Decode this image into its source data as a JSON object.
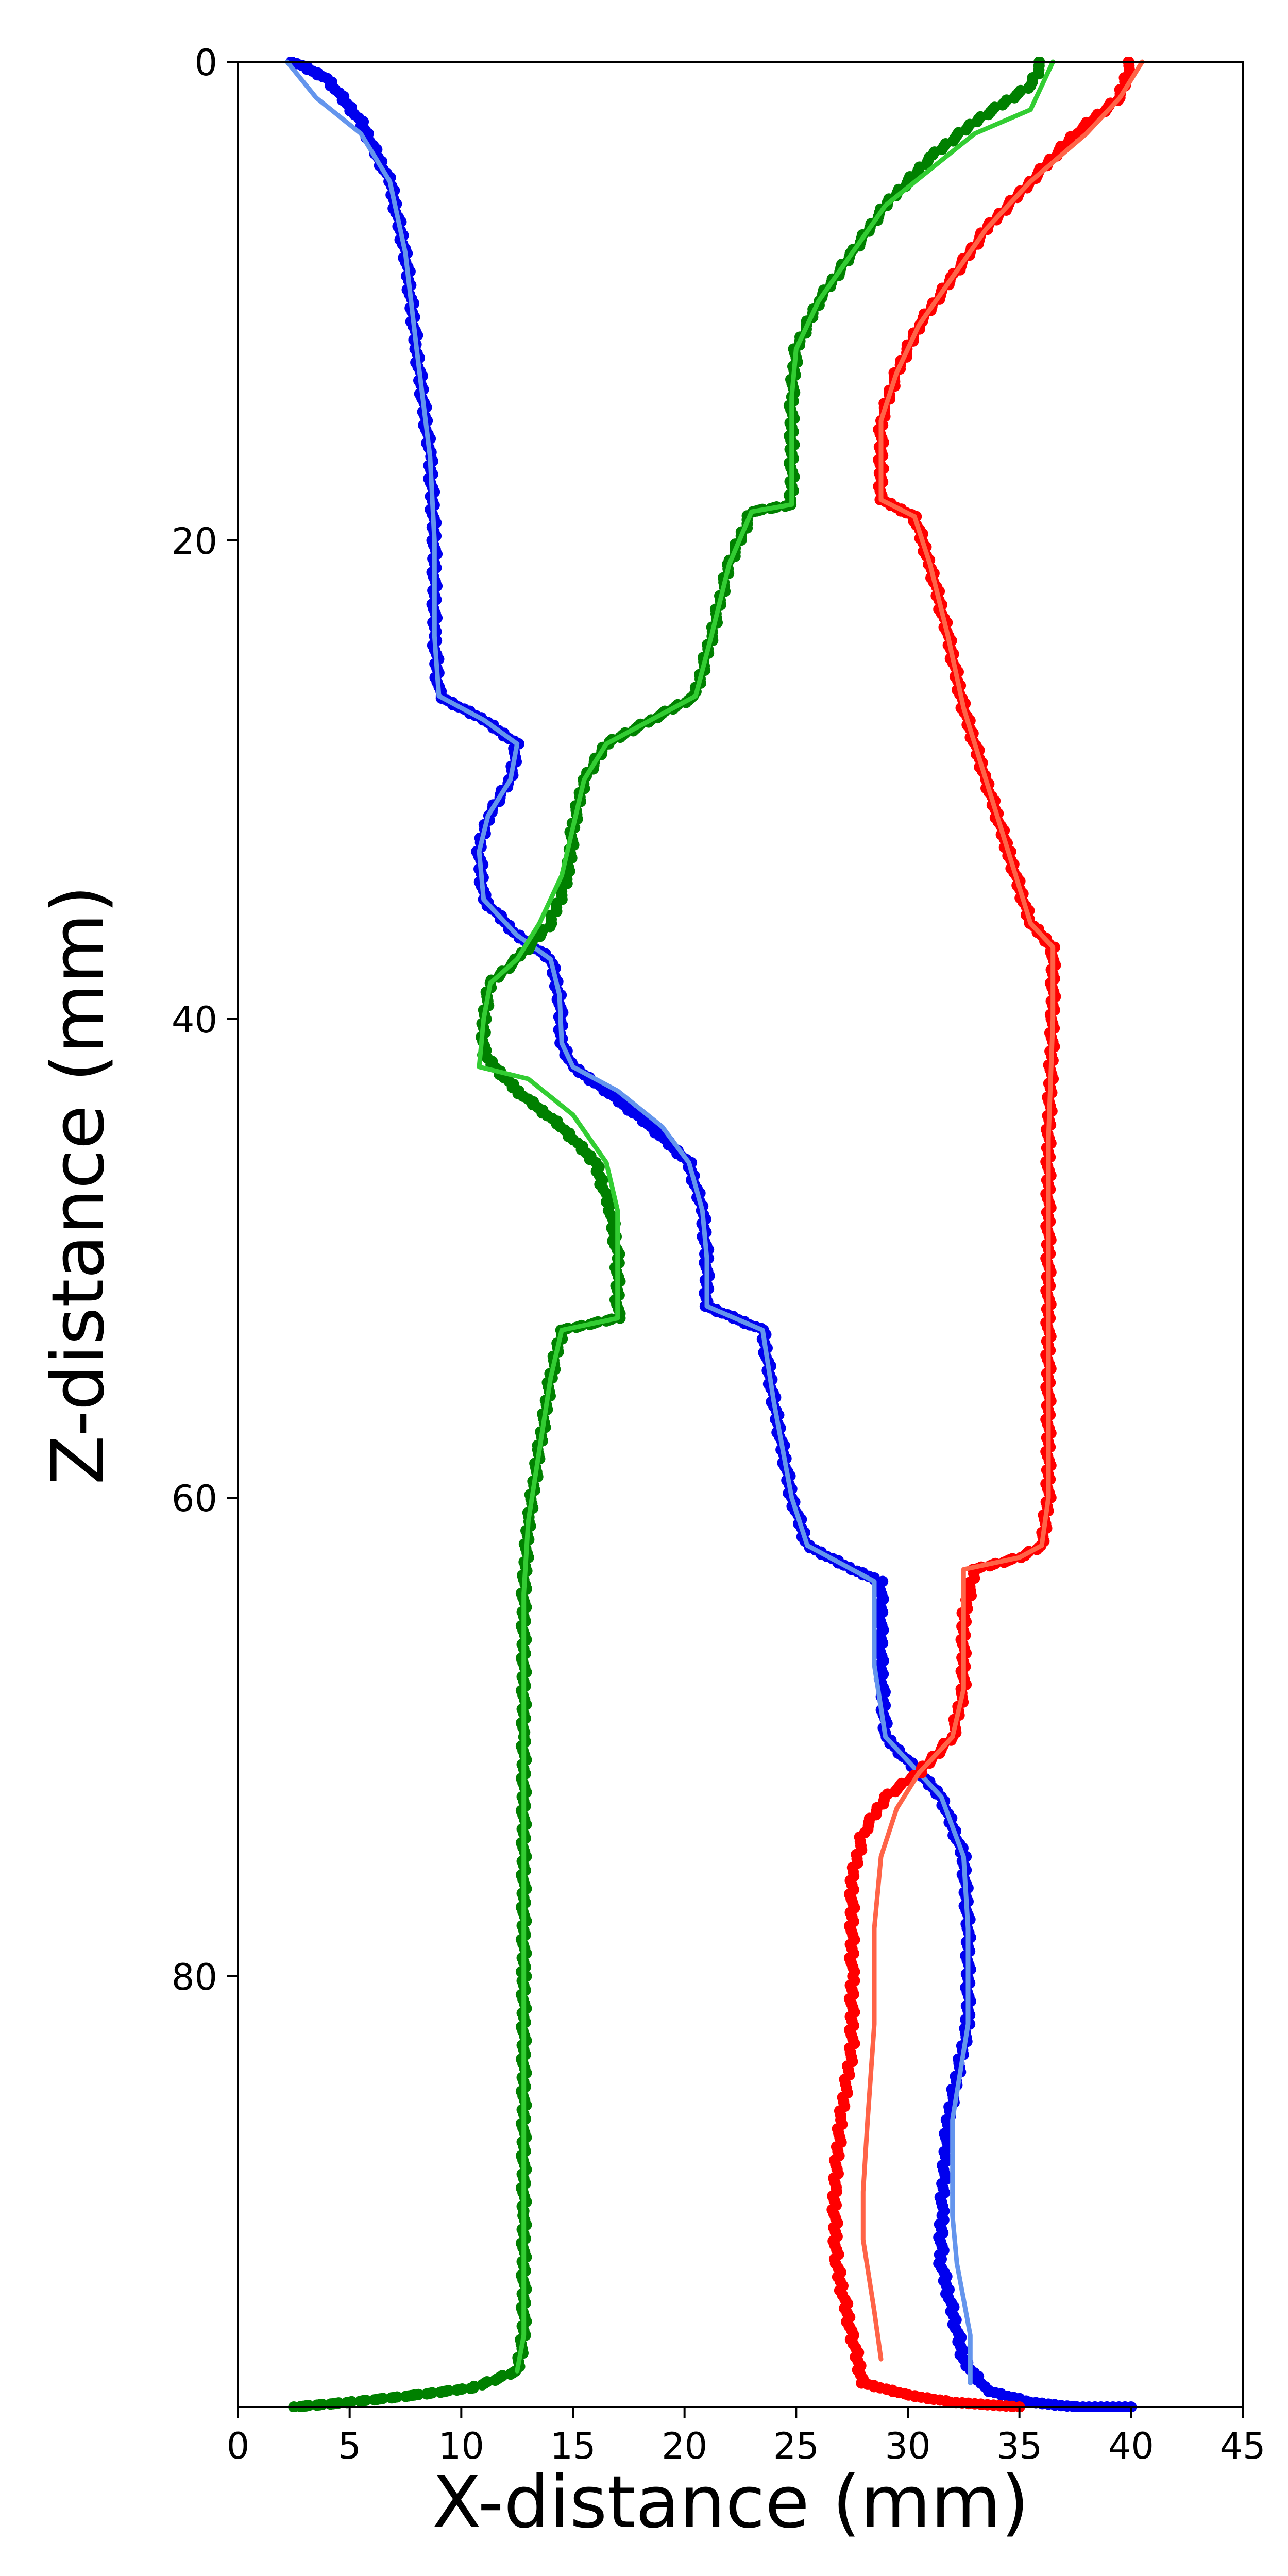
{
  "chart_data": {
    "type": "scatter",
    "title": "",
    "xlabel": "X-distance (mm)",
    "ylabel": "Z-distance (mm)",
    "xlim": [
      0,
      45
    ],
    "ylim": [
      0,
      98
    ],
    "y_inverted": true,
    "grid": false,
    "legend": "none",
    "x_ticks": [
      "0",
      "5",
      "10",
      "15",
      "20",
      "25",
      "30",
      "35",
      "40",
      "45"
    ],
    "y_ticks": [
      "0",
      "20",
      "40",
      "60",
      "80"
    ],
    "series": [
      {
        "color": "#0000ee",
        "fit_color": "#6495ed",
        "points": [
          [
            2.5,
            0
          ],
          [
            4,
            0.7
          ],
          [
            5.5,
            2.5
          ],
          [
            6.8,
            5
          ],
          [
            7.5,
            8
          ],
          [
            8,
            12
          ],
          [
            8.6,
            16.5
          ],
          [
            8.8,
            20
          ],
          [
            8.8,
            24
          ],
          [
            9,
            26.5
          ],
          [
            11,
            27.5
          ],
          [
            12.5,
            28.5
          ],
          [
            12.2,
            30
          ],
          [
            11.2,
            31.5
          ],
          [
            10.8,
            33
          ],
          [
            11,
            35
          ],
          [
            12.5,
            36.5
          ],
          [
            14,
            37.5
          ],
          [
            14.4,
            39
          ],
          [
            14.5,
            41
          ],
          [
            15,
            42
          ],
          [
            16.5,
            43
          ],
          [
            18.5,
            44.5
          ],
          [
            20.2,
            46
          ],
          [
            20.8,
            48
          ],
          [
            21,
            50
          ],
          [
            21,
            52
          ],
          [
            23.5,
            53
          ],
          [
            24,
            56
          ],
          [
            24.8,
            60
          ],
          [
            25.5,
            62
          ],
          [
            27.5,
            63
          ],
          [
            28.8,
            63.5
          ],
          [
            28.8,
            67
          ],
          [
            29,
            70
          ],
          [
            30.5,
            71.5
          ],
          [
            31.5,
            72.5
          ],
          [
            32.5,
            75
          ],
          [
            32.7,
            78
          ],
          [
            32.7,
            82
          ],
          [
            31.8,
            86
          ],
          [
            31.5,
            90
          ],
          [
            31.5,
            92
          ],
          [
            32.5,
            96
          ],
          [
            33.5,
            97.3
          ],
          [
            35.5,
            97.8
          ],
          [
            37.5,
            98
          ],
          [
            40,
            98
          ]
        ],
        "fit": [
          [
            2.2,
            0
          ],
          [
            3.5,
            1.5
          ],
          [
            5.5,
            3
          ],
          [
            6.8,
            5
          ],
          [
            7.5,
            8
          ],
          [
            8,
            12
          ],
          [
            8.6,
            16.5
          ],
          [
            8.8,
            20
          ],
          [
            8.8,
            24
          ],
          [
            9,
            26.5
          ],
          [
            11,
            27.5
          ],
          [
            12.5,
            28.5
          ],
          [
            12.2,
            30
          ],
          [
            11.2,
            31.5
          ],
          [
            10.8,
            33
          ],
          [
            11,
            35
          ],
          [
            12.5,
            36.5
          ],
          [
            14,
            37.5
          ],
          [
            14.4,
            39
          ],
          [
            14.5,
            41
          ],
          [
            15,
            42
          ],
          [
            17,
            43
          ],
          [
            19,
            44.5
          ],
          [
            20.2,
            46
          ],
          [
            20.8,
            48
          ],
          [
            21,
            50
          ],
          [
            21,
            52
          ],
          [
            23.5,
            53
          ],
          [
            24,
            56
          ],
          [
            24.8,
            60
          ],
          [
            25.5,
            62
          ],
          [
            27.5,
            63
          ],
          [
            28.5,
            63.5
          ],
          [
            28.5,
            67
          ],
          [
            29,
            70
          ],
          [
            30.5,
            71.5
          ],
          [
            31.5,
            72.5
          ],
          [
            32.5,
            75
          ],
          [
            32.7,
            78
          ],
          [
            32.7,
            82
          ],
          [
            32,
            86
          ],
          [
            32,
            90
          ],
          [
            32.2,
            92
          ],
          [
            32.8,
            95
          ],
          [
            32.8,
            97
          ]
        ]
      },
      {
        "color": "#008000",
        "fit_color": "#32cd32",
        "points": [
          [
            36,
            0
          ],
          [
            35.5,
            1
          ],
          [
            33,
            2.5
          ],
          [
            31,
            4
          ],
          [
            29,
            6
          ],
          [
            27.5,
            8
          ],
          [
            26,
            10
          ],
          [
            25,
            12
          ],
          [
            24.8,
            14
          ],
          [
            24.8,
            16
          ],
          [
            24.8,
            18.5
          ],
          [
            23,
            18.8
          ],
          [
            22,
            21
          ],
          [
            21.2,
            24
          ],
          [
            20.5,
            26.5
          ],
          [
            18.5,
            27.5
          ],
          [
            16.5,
            28.5
          ],
          [
            15.5,
            30
          ],
          [
            15,
            32
          ],
          [
            14.8,
            34
          ],
          [
            14,
            36
          ],
          [
            12.5,
            37.5
          ],
          [
            11.3,
            38.5
          ],
          [
            11,
            40
          ],
          [
            11,
            41.5
          ],
          [
            12.5,
            43
          ],
          [
            14.5,
            44.5
          ],
          [
            16,
            46
          ],
          [
            16.7,
            48
          ],
          [
            17,
            50
          ],
          [
            17,
            52.5
          ],
          [
            14.5,
            53
          ],
          [
            14,
            55
          ],
          [
            13.5,
            58
          ],
          [
            13,
            61
          ],
          [
            12.8,
            64
          ],
          [
            12.8,
            70
          ],
          [
            12.8,
            80
          ],
          [
            12.8,
            90
          ],
          [
            12.8,
            95
          ],
          [
            12.5,
            96.5
          ],
          [
            10.5,
            97.2
          ],
          [
            8,
            97.5
          ],
          [
            5,
            97.8
          ],
          [
            2.5,
            98
          ]
        ],
        "fit": [
          [
            36.5,
            0
          ],
          [
            35.5,
            2
          ],
          [
            33,
            3
          ],
          [
            31,
            4.5
          ],
          [
            29,
            6
          ],
          [
            27.5,
            8
          ],
          [
            26,
            10
          ],
          [
            25,
            12
          ],
          [
            24.8,
            14
          ],
          [
            24.8,
            16
          ],
          [
            24.8,
            18.5
          ],
          [
            23,
            18.8
          ],
          [
            22,
            21
          ],
          [
            21.2,
            24
          ],
          [
            20.5,
            26.5
          ],
          [
            18.5,
            27.5
          ],
          [
            16.5,
            28.5
          ],
          [
            15.5,
            30
          ],
          [
            15,
            32
          ],
          [
            14.5,
            34
          ],
          [
            13.5,
            36
          ],
          [
            12.5,
            37.5
          ],
          [
            11.3,
            38.5
          ],
          [
            11,
            40
          ],
          [
            10.8,
            42
          ],
          [
            13,
            42.5
          ],
          [
            15,
            44
          ],
          [
            16.5,
            46
          ],
          [
            17,
            48
          ],
          [
            17,
            52.5
          ],
          [
            14.5,
            53
          ],
          [
            14,
            55
          ],
          [
            13.5,
            58
          ],
          [
            13,
            61
          ],
          [
            12.8,
            64
          ],
          [
            12.8,
            70
          ],
          [
            12.8,
            80
          ],
          [
            12.8,
            90
          ],
          [
            12.8,
            95
          ],
          [
            12.5,
            96.5
          ]
        ]
      },
      {
        "color": "#ff0000",
        "fit_color": "#ff6347",
        "points": [
          [
            40,
            0
          ],
          [
            39.5,
            1.5
          ],
          [
            37.5,
            3
          ],
          [
            35.5,
            5
          ],
          [
            33.5,
            7
          ],
          [
            32,
            9
          ],
          [
            30.5,
            11
          ],
          [
            29.5,
            13
          ],
          [
            28.8,
            15
          ],
          [
            28.8,
            17
          ],
          [
            28.8,
            18.3
          ],
          [
            30.3,
            19
          ],
          [
            31,
            21
          ],
          [
            31.8,
            24
          ],
          [
            32.5,
            27
          ],
          [
            33.5,
            30
          ],
          [
            34.5,
            33
          ],
          [
            35.5,
            36
          ],
          [
            36.5,
            37
          ],
          [
            36.5,
            40
          ],
          [
            36.3,
            45
          ],
          [
            36.3,
            50
          ],
          [
            36.3,
            55
          ],
          [
            36.3,
            60
          ],
          [
            36,
            62
          ],
          [
            35,
            62.5
          ],
          [
            33,
            63
          ],
          [
            32.5,
            65
          ],
          [
            32.5,
            68
          ],
          [
            32,
            70
          ],
          [
            30.5,
            71.5
          ],
          [
            29,
            72.5
          ],
          [
            28,
            74
          ],
          [
            27.5,
            76
          ],
          [
            27.5,
            80
          ],
          [
            27.5,
            83
          ],
          [
            27,
            86
          ],
          [
            26.7,
            89
          ],
          [
            26.8,
            92
          ],
          [
            27.5,
            95
          ],
          [
            28,
            97
          ],
          [
            30,
            97.5
          ],
          [
            32,
            97.8
          ],
          [
            35,
            98
          ]
        ],
        "fit": [
          [
            40.5,
            0
          ],
          [
            39.5,
            1.5
          ],
          [
            38,
            3
          ],
          [
            35.5,
            5
          ],
          [
            33.5,
            7
          ],
          [
            32,
            9
          ],
          [
            30.5,
            11
          ],
          [
            29.5,
            13
          ],
          [
            28.8,
            15
          ],
          [
            28.8,
            17
          ],
          [
            28.8,
            18.3
          ],
          [
            30.3,
            19
          ],
          [
            31,
            21
          ],
          [
            31.8,
            24
          ],
          [
            32.5,
            27
          ],
          [
            33.5,
            30
          ],
          [
            34.5,
            33
          ],
          [
            35.5,
            36
          ],
          [
            36.5,
            37
          ],
          [
            36.5,
            40
          ],
          [
            36.3,
            45
          ],
          [
            36.3,
            50
          ],
          [
            36.3,
            55
          ],
          [
            36.3,
            60
          ],
          [
            36,
            62
          ],
          [
            35,
            62.5
          ],
          [
            32.5,
            63
          ],
          [
            32.5,
            65
          ],
          [
            32.5,
            68
          ],
          [
            32,
            70
          ],
          [
            30.5,
            71.5
          ],
          [
            29.5,
            73
          ],
          [
            28.8,
            75
          ],
          [
            28.5,
            78
          ],
          [
            28.5,
            82
          ],
          [
            28.2,
            86
          ],
          [
            28,
            89
          ],
          [
            28,
            91
          ],
          [
            28.5,
            94
          ],
          [
            28.8,
            96
          ]
        ]
      }
    ]
  }
}
